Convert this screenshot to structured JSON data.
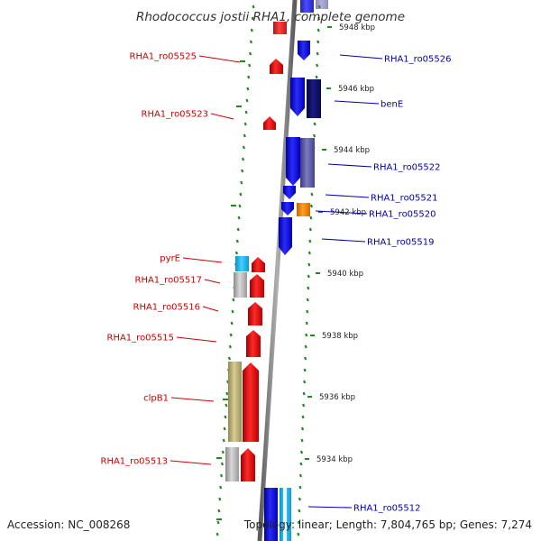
{
  "title": "Rhodococcus jostii RHA1, complete genome",
  "footer": {
    "accession": "Accession: NC_008268",
    "summary": "Topology: linear; Length: 7,804,765 bp; Genes: 7,274"
  },
  "ticks": [
    "5948 kbp",
    "5946 kbp",
    "5944 kbp",
    "5942 kbp",
    "5940 kbp",
    "5938 kbp",
    "5936 kbp",
    "5934 kbp"
  ],
  "labels_left": [
    "RHA1_ro05525",
    "RHA1_ro05523",
    "pyrE",
    "RHA1_ro05517",
    "RHA1_ro05516",
    "RHA1_ro05515",
    "clpB1",
    "RHA1_ro05513"
  ],
  "labels_right": [
    "RHA1_ro05526",
    "benE",
    "RHA1_ro05522",
    "RHA1_ro05521",
    "RHA1_ro05520",
    "RHA1_ro05519",
    "RHA1_ro05512"
  ],
  "colors": {
    "forward_gene": "#ff0000",
    "reverse_gene": "#0000ee",
    "left_label": "#cc0000",
    "right_label": "#0000aa",
    "dots": "#228822",
    "backbone": "#888888",
    "cog_navy": "#0a0a66",
    "cog_slate": "#5c5aa6",
    "cog_orange": "#ff8c00",
    "cog_cyan": "#22bbee",
    "cog_gray": "#b8b8b8",
    "cog_olive": "#c4b87a"
  }
}
